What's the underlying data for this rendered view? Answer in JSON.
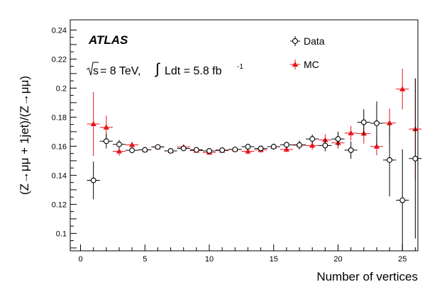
{
  "chart_data": {
    "type": "scatter",
    "xlabel": "Number of vertices",
    "ylabel": "(Z→μμ + 1jet)/(Z→μμ)",
    "xlim": [
      -0.8,
      26.2
    ],
    "ylim": [
      0.088,
      0.247
    ],
    "x_ticks": [
      0,
      5,
      10,
      15,
      20,
      25
    ],
    "y_ticks": [
      0.1,
      0.12,
      0.14,
      0.16,
      0.18,
      0.2,
      0.22,
      0.24
    ],
    "grid": false,
    "legend_position": "top-right",
    "annotations": {
      "experiment": "ATLAS",
      "sqrt_label": "s",
      "energy_label": "= 8 TeV,",
      "integral_symbol": "∫",
      "lumi_label": "Ldt = 5.8 fb",
      "lumi_exponent": "-1"
    },
    "series": [
      {
        "name": "Data",
        "marker": "open-circle",
        "color": "#000000",
        "x": [
          1,
          2,
          3,
          4,
          5,
          6,
          7,
          8,
          9,
          10,
          11,
          12,
          13,
          14,
          15,
          16,
          17,
          18,
          19,
          20,
          21,
          22,
          23,
          24,
          25,
          26
        ],
        "y": [
          0.1365,
          0.1635,
          0.1613,
          0.1572,
          0.1575,
          0.1595,
          0.1568,
          0.1585,
          0.1575,
          0.1568,
          0.1573,
          0.1578,
          0.1597,
          0.1585,
          0.1597,
          0.161,
          0.1608,
          0.165,
          0.1605,
          0.165,
          0.1573,
          0.1765,
          0.1758,
          0.1505,
          0.1228,
          0.1515
        ],
        "yerr": [
          0.013,
          0.005,
          0.003,
          0.002,
          0.0015,
          0.0015,
          0.0015,
          0.0015,
          0.0015,
          0.0015,
          0.0015,
          0.0015,
          0.002,
          0.002,
          0.002,
          0.002,
          0.003,
          0.003,
          0.004,
          0.005,
          0.006,
          0.009,
          0.015,
          0.025,
          0.035,
          0.055
        ]
      },
      {
        "name": "MC",
        "marker": "filled-triangle",
        "color": "#e8141c",
        "x": [
          1,
          2,
          3,
          4,
          5,
          6,
          7,
          8,
          9,
          10,
          11,
          12,
          13,
          14,
          15,
          16,
          17,
          18,
          19,
          20,
          21,
          22,
          23,
          24,
          25,
          26
        ],
        "y": [
          0.1753,
          0.173,
          0.1565,
          0.161,
          0.1575,
          0.1595,
          0.1568,
          0.1595,
          0.157,
          0.1557,
          0.157,
          0.1578,
          0.1565,
          0.1575,
          0.1597,
          0.1578,
          0.161,
          0.1605,
          0.1643,
          0.1623,
          0.169,
          0.1688,
          0.1598,
          0.176,
          0.1993,
          0.1718
        ],
        "yerr": [
          0.022,
          0.008,
          0.003,
          0.002,
          0.0015,
          0.0015,
          0.0015,
          0.0015,
          0.0015,
          0.0015,
          0.0015,
          0.0015,
          0.002,
          0.002,
          0.002,
          0.002,
          0.003,
          0.003,
          0.004,
          0.004,
          0.005,
          0.007,
          0.006,
          0.01,
          0.014,
          0.035
        ]
      }
    ]
  }
}
